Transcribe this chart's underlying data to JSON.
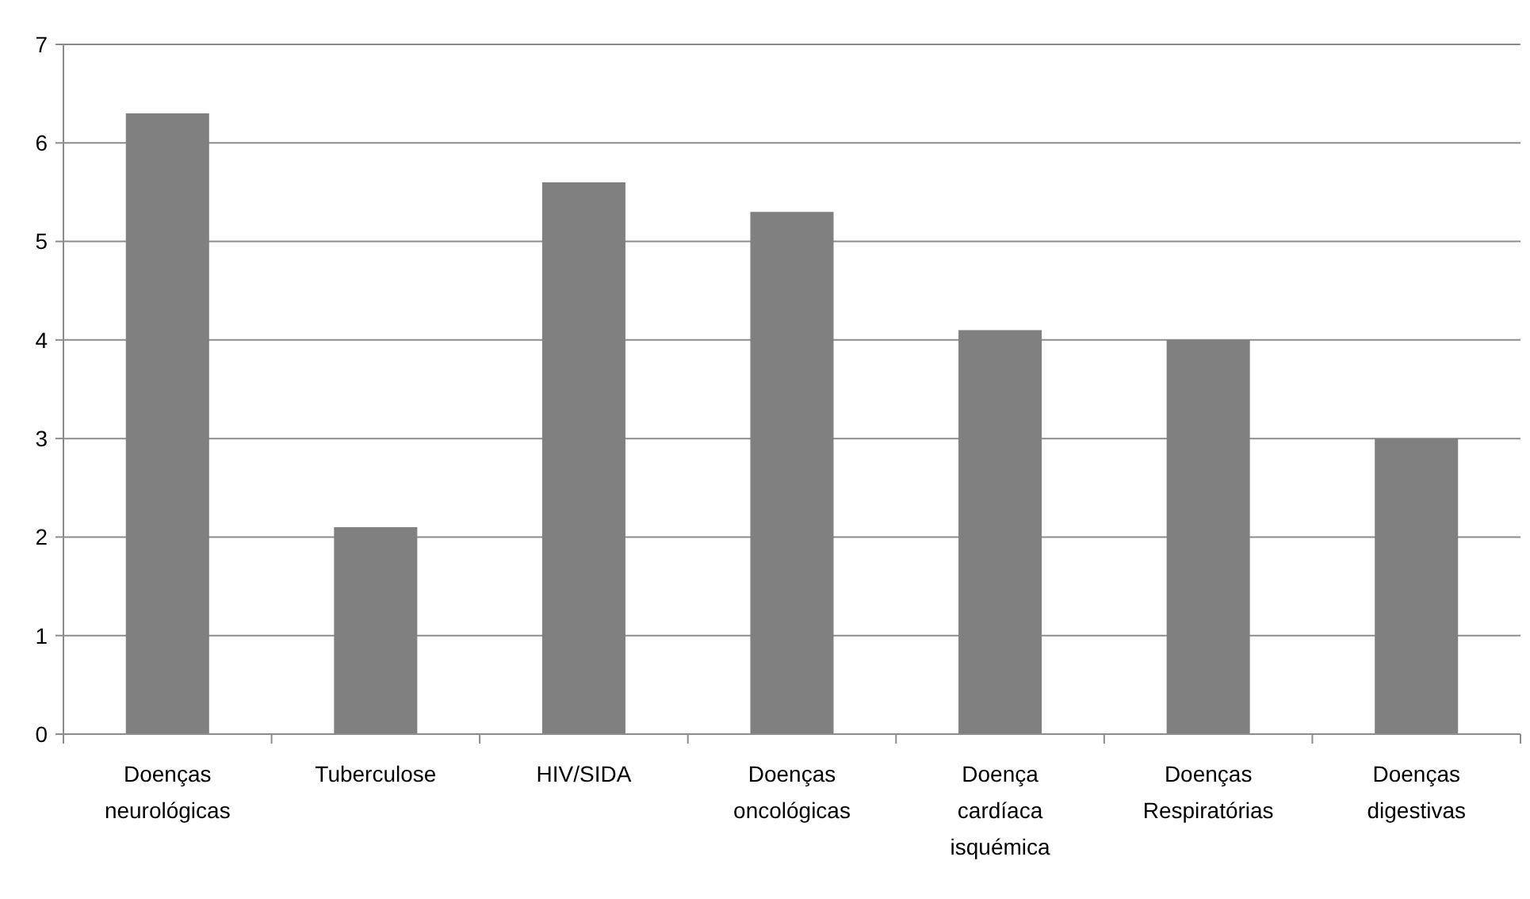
{
  "chart_data": {
    "type": "bar",
    "categories": [
      "Doenças\nneurológicas",
      "Tuberculose",
      "HIV/SIDA",
      "Doenças\noncológicas",
      "Doença\ncardíaca\nisquémica",
      "Doenças\nRespiratórias",
      "Doenças\ndigestivas"
    ],
    "values": [
      6.3,
      2.1,
      5.6,
      5.3,
      4.1,
      4.0,
      3.0
    ],
    "color": "#808080",
    "ylim": [
      0,
      7
    ],
    "yticks": [
      0,
      1,
      2,
      3,
      4,
      5,
      6,
      7
    ],
    "grid": "y"
  }
}
